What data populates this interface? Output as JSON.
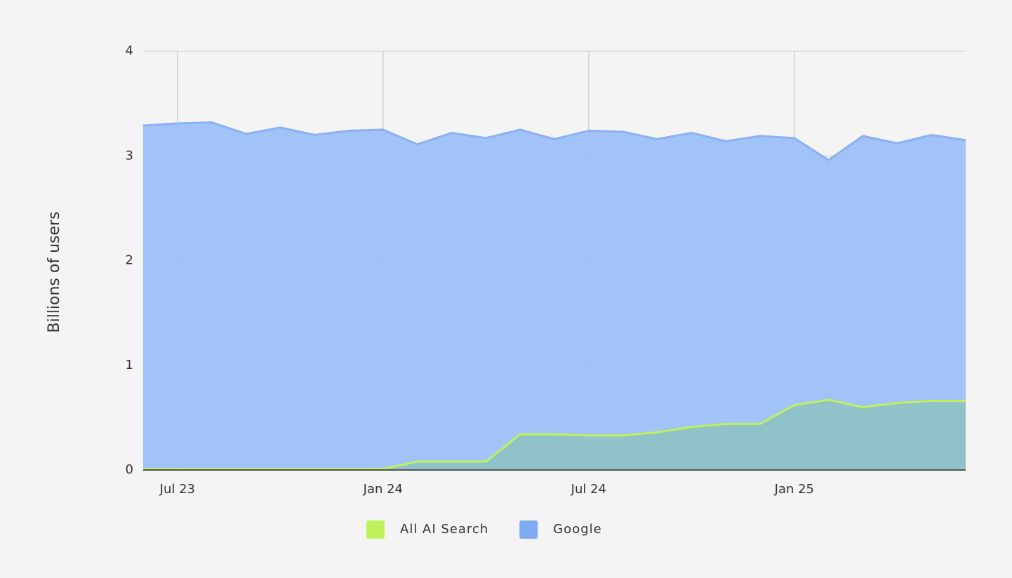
{
  "chart_data": {
    "type": "area",
    "y_label": "Billions of users",
    "categories": [
      null,
      "Jul 23",
      null,
      null,
      null,
      null,
      null,
      "Jan 24",
      null,
      null,
      null,
      null,
      null,
      "Jul 24",
      null,
      null,
      null,
      null,
      null,
      "Jan 25",
      null,
      null,
      null,
      null,
      null
    ],
    "series": [
      {
        "name": "All AI Search",
        "color": "#bff25a",
        "fill": "#8fc2c6",
        "values": [
          0.01,
          0.01,
          0.01,
          0.01,
          0.01,
          0.01,
          0.01,
          0.01,
          0.08,
          0.08,
          0.08,
          0.34,
          0.34,
          0.33,
          0.33,
          0.36,
          0.41,
          0.44,
          0.44,
          0.62,
          0.67,
          0.6,
          0.64,
          0.66,
          0.66
        ]
      },
      {
        "name": "Google",
        "color": "#8ab1f2",
        "fill": "#9cc0f8",
        "values": [
          3.29,
          3.31,
          3.32,
          3.21,
          3.27,
          3.2,
          3.24,
          3.25,
          3.11,
          3.22,
          3.17,
          3.25,
          3.16,
          3.24,
          3.23,
          3.16,
          3.22,
          3.14,
          3.19,
          3.17,
          2.96,
          3.19,
          3.12,
          3.2,
          3.15
        ]
      }
    ],
    "ylim": [
      0,
      4
    ],
    "yticks": [
      0,
      1,
      2,
      3,
      4
    ],
    "grid": true
  }
}
